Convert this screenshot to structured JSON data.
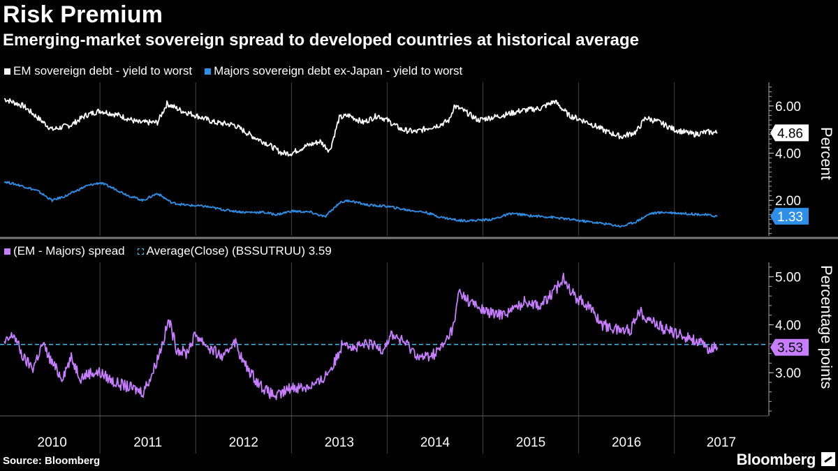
{
  "title": "Risk Premium",
  "subtitle": "Emerging-market sovereign spread to developed countries at historical average",
  "legend_top": [
    {
      "label": "EM sovereign debt - yield to worst",
      "color": "#ffffff"
    },
    {
      "label": "Majors sovereign debt ex-Japan - yield to worst",
      "color": "#2d8fe8"
    }
  ],
  "legend_bottom": [
    {
      "label": "(EM - Majors) spread",
      "color": "#c77dff"
    },
    {
      "label": "Average(Close) (BSSUTRUU) 3.59",
      "color": "#3ec1f3"
    }
  ],
  "source": "Source: Bloomberg",
  "brand": "Bloomberg",
  "chart_data": [
    {
      "type": "line",
      "ylabel": "Percent",
      "ylim": [
        0.5,
        7.0
      ],
      "yticks": [
        "2.00",
        "4.00",
        "6.00"
      ],
      "series": [
        {
          "name": "EM sovereign debt - yield to worst",
          "color": "#ffffff",
          "last_value": "4.86",
          "points": [
            [
              2010.0,
              6.3
            ],
            [
              2010.2,
              6.0
            ],
            [
              2010.35,
              5.5
            ],
            [
              2010.5,
              5.0
            ],
            [
              2010.7,
              5.2
            ],
            [
              2010.85,
              5.6
            ],
            [
              2011.0,
              5.8
            ],
            [
              2011.2,
              5.6
            ],
            [
              2011.4,
              5.3
            ],
            [
              2011.6,
              5.3
            ],
            [
              2011.7,
              6.1
            ],
            [
              2011.85,
              5.8
            ],
            [
              2012.0,
              5.6
            ],
            [
              2012.2,
              5.3
            ],
            [
              2012.4,
              5.2
            ],
            [
              2012.6,
              4.7
            ],
            [
              2012.75,
              4.4
            ],
            [
              2012.9,
              4.0
            ],
            [
              2013.0,
              4.0
            ],
            [
              2013.15,
              4.3
            ],
            [
              2013.3,
              4.5
            ],
            [
              2013.4,
              4.1
            ],
            [
              2013.5,
              5.5
            ],
            [
              2013.6,
              5.6
            ],
            [
              2013.75,
              5.3
            ],
            [
              2013.9,
              5.6
            ],
            [
              2014.0,
              5.4
            ],
            [
              2014.15,
              5.0
            ],
            [
              2014.3,
              4.9
            ],
            [
              2014.45,
              5.1
            ],
            [
              2014.55,
              5.2
            ],
            [
              2014.65,
              5.4
            ],
            [
              2014.7,
              6.0
            ],
            [
              2014.8,
              5.8
            ],
            [
              2014.95,
              5.4
            ],
            [
              2015.2,
              5.6
            ],
            [
              2015.4,
              5.8
            ],
            [
              2015.6,
              5.9
            ],
            [
              2015.75,
              6.2
            ],
            [
              2015.9,
              5.6
            ],
            [
              2016.1,
              5.3
            ],
            [
              2016.3,
              4.9
            ],
            [
              2016.45,
              4.7
            ],
            [
              2016.6,
              4.9
            ],
            [
              2016.7,
              5.5
            ],
            [
              2016.85,
              5.3
            ],
            [
              2017.0,
              5.0
            ],
            [
              2017.2,
              4.8
            ],
            [
              2017.35,
              4.9
            ],
            [
              2017.45,
              4.86
            ]
          ]
        },
        {
          "name": "Majors sovereign debt ex-Japan - yield to worst",
          "color": "#2d8fe8",
          "last_value": "1.33",
          "points": [
            [
              2010.0,
              2.8
            ],
            [
              2010.2,
              2.6
            ],
            [
              2010.35,
              2.4
            ],
            [
              2010.5,
              2.0
            ],
            [
              2010.65,
              2.2
            ],
            [
              2010.85,
              2.6
            ],
            [
              2011.0,
              2.75
            ],
            [
              2011.15,
              2.5
            ],
            [
              2011.3,
              2.2
            ],
            [
              2011.45,
              2.0
            ],
            [
              2011.6,
              2.3
            ],
            [
              2011.75,
              1.9
            ],
            [
              2011.9,
              1.8
            ],
            [
              2012.1,
              1.75
            ],
            [
              2012.3,
              1.6
            ],
            [
              2012.5,
              1.5
            ],
            [
              2012.7,
              1.5
            ],
            [
              2012.85,
              1.4
            ],
            [
              2013.0,
              1.55
            ],
            [
              2013.2,
              1.5
            ],
            [
              2013.35,
              1.3
            ],
            [
              2013.5,
              1.9
            ],
            [
              2013.6,
              2.0
            ],
            [
              2013.8,
              1.8
            ],
            [
              2014.0,
              1.75
            ],
            [
              2014.2,
              1.6
            ],
            [
              2014.4,
              1.5
            ],
            [
              2014.55,
              1.3
            ],
            [
              2014.75,
              1.15
            ],
            [
              2014.9,
              1.15
            ],
            [
              2015.1,
              1.2
            ],
            [
              2015.3,
              1.45
            ],
            [
              2015.5,
              1.35
            ],
            [
              2015.7,
              1.3
            ],
            [
              2015.9,
              1.2
            ],
            [
              2016.1,
              1.1
            ],
            [
              2016.3,
              1.0
            ],
            [
              2016.45,
              0.9
            ],
            [
              2016.6,
              1.1
            ],
            [
              2016.75,
              1.45
            ],
            [
              2016.9,
              1.5
            ],
            [
              2017.1,
              1.45
            ],
            [
              2017.3,
              1.4
            ],
            [
              2017.45,
              1.33
            ]
          ]
        }
      ]
    },
    {
      "type": "line",
      "ylabel": "Percentage points",
      "ylim": [
        2.1,
        5.3
      ],
      "yticks": [
        "3.00",
        "4.00",
        "5.00"
      ],
      "average": 3.59,
      "series": [
        {
          "name": "(EM - Majors) spread",
          "color": "#c77dff",
          "last_value": "3.53",
          "points": [
            [
              2010.0,
              3.6
            ],
            [
              2010.1,
              3.8
            ],
            [
              2010.2,
              3.3
            ],
            [
              2010.3,
              3.1
            ],
            [
              2010.4,
              3.6
            ],
            [
              2010.5,
              3.2
            ],
            [
              2010.6,
              2.9
            ],
            [
              2010.7,
              3.3
            ],
            [
              2010.8,
              2.9
            ],
            [
              2010.9,
              3.0
            ],
            [
              2011.0,
              3.0
            ],
            [
              2011.15,
              2.8
            ],
            [
              2011.3,
              2.7
            ],
            [
              2011.45,
              2.6
            ],
            [
              2011.55,
              3.0
            ],
            [
              2011.65,
              3.6
            ],
            [
              2011.72,
              4.1
            ],
            [
              2011.8,
              3.5
            ],
            [
              2011.9,
              3.4
            ],
            [
              2012.0,
              3.8
            ],
            [
              2012.15,
              3.5
            ],
            [
              2012.3,
              3.3
            ],
            [
              2012.4,
              3.7
            ],
            [
              2012.5,
              3.2
            ],
            [
              2012.65,
              2.8
            ],
            [
              2012.75,
              2.6
            ],
            [
              2012.85,
              2.5
            ],
            [
              2013.0,
              2.7
            ],
            [
              2013.15,
              2.7
            ],
            [
              2013.3,
              2.8
            ],
            [
              2013.45,
              3.2
            ],
            [
              2013.55,
              3.7
            ],
            [
              2013.65,
              3.5
            ],
            [
              2013.8,
              3.6
            ],
            [
              2013.95,
              3.5
            ],
            [
              2014.05,
              3.8
            ],
            [
              2014.2,
              3.6
            ],
            [
              2014.35,
              3.3
            ],
            [
              2014.5,
              3.4
            ],
            [
              2014.6,
              3.6
            ],
            [
              2014.7,
              4.0
            ],
            [
              2014.75,
              4.7
            ],
            [
              2014.85,
              4.5
            ],
            [
              2015.0,
              4.3
            ],
            [
              2015.15,
              4.2
            ],
            [
              2015.3,
              4.3
            ],
            [
              2015.45,
              4.5
            ],
            [
              2015.6,
              4.4
            ],
            [
              2015.75,
              4.7
            ],
            [
              2015.85,
              5.0
            ],
            [
              2015.95,
              4.6
            ],
            [
              2016.1,
              4.4
            ],
            [
              2016.25,
              4.0
            ],
            [
              2016.4,
              3.9
            ],
            [
              2016.55,
              3.9
            ],
            [
              2016.62,
              4.3
            ],
            [
              2016.75,
              4.1
            ],
            [
              2016.9,
              3.9
            ],
            [
              2017.05,
              3.8
            ],
            [
              2017.2,
              3.7
            ],
            [
              2017.35,
              3.5
            ],
            [
              2017.45,
              3.53
            ]
          ]
        }
      ]
    }
  ],
  "x_axis": {
    "labels": [
      "2010",
      "2011",
      "2012",
      "2013",
      "2014",
      "2015",
      "2016",
      "2017"
    ]
  }
}
